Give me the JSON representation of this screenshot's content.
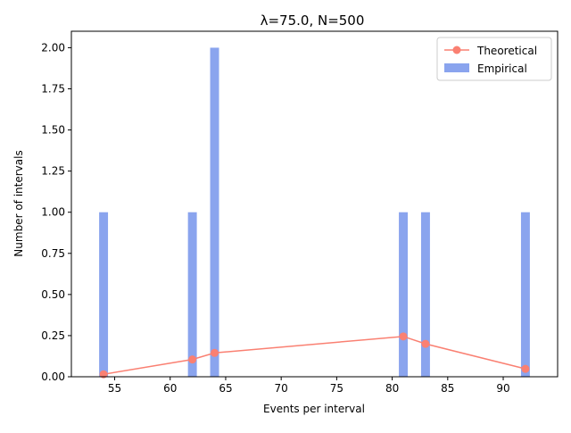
{
  "chart_data": {
    "type": "bar",
    "title": "λ=75.0, N=500",
    "xlabel": "Events per interval",
    "ylabel": "Number of intervals",
    "xlim": [
      51.1,
      94.9
    ],
    "ylim": [
      0,
      2.1
    ],
    "xticks": [
      55,
      60,
      65,
      70,
      75,
      80,
      85,
      90
    ],
    "xtick_labels": [
      "55",
      "60",
      "65",
      "70",
      "75",
      "80",
      "85",
      "90"
    ],
    "yticks": [
      0,
      0.25,
      0.5,
      0.75,
      1.0,
      1.25,
      1.5,
      1.75,
      2.0
    ],
    "ytick_labels": [
      "0.00",
      "0.25",
      "0.50",
      "0.75",
      "1.00",
      "1.25",
      "1.50",
      "1.75",
      "2.00"
    ],
    "grid": false,
    "legend_position": "top-right",
    "series": [
      {
        "name": "Theoretical",
        "kind": "line",
        "color": "#fa8072",
        "marker": "circle",
        "x": [
          54,
          62,
          64,
          81,
          83,
          92
        ],
        "y": [
          0.015,
          0.105,
          0.145,
          0.245,
          0.2,
          0.048
        ]
      },
      {
        "name": "Empirical",
        "kind": "bar",
        "color": "#8aa4ee",
        "x": [
          54,
          62,
          64,
          81,
          83,
          92
        ],
        "y": [
          1,
          1,
          2,
          1,
          1,
          1
        ],
        "bar_width": 0.8
      }
    ]
  }
}
